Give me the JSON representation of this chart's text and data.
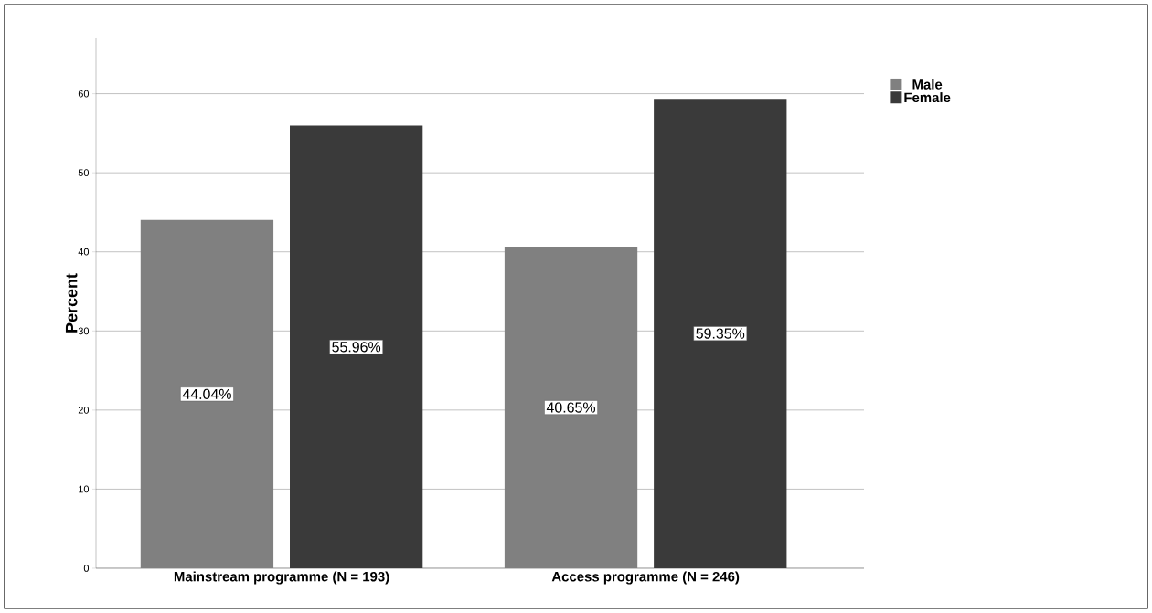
{
  "chart_data": {
    "type": "bar",
    "ylabel": "Percent",
    "categories": [
      "Mainstream programme (N = 193)",
      "Access programme (N = 246)"
    ],
    "series": [
      {
        "name": "Male",
        "color": "#808080",
        "values": [
          44.04,
          40.65
        ],
        "value_labels": [
          "44.04%",
          "40.65%"
        ]
      },
      {
        "name": "Female",
        "color": "#3a3a3a",
        "values": [
          55.96,
          59.35
        ],
        "value_labels": [
          "55.96%",
          "59.35%"
        ]
      }
    ],
    "ylim": [
      0,
      67
    ],
    "yticks": [
      0,
      10,
      20,
      30,
      40,
      50,
      60
    ],
    "grid": "y",
    "legend": "top right"
  }
}
